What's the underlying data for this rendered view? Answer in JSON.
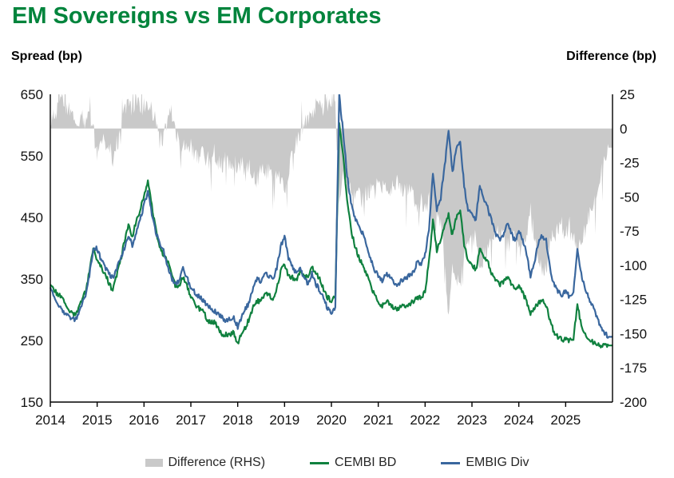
{
  "title": "EM Sovereigns vs EM Corporates",
  "axis_titles": {
    "left": "Spread (bp)",
    "right": "Difference (bp)"
  },
  "colors": {
    "title_green": "#00843c",
    "line_green": "#10813f",
    "line_blue": "#3a679e",
    "area_gray": "#c9c9c9",
    "axis_black": "#000000",
    "tick_text": "#111111"
  },
  "legend": {
    "items": [
      {
        "label": "Difference (RHS)",
        "swatch": "area",
        "color": "#c9c9c9"
      },
      {
        "label": "CEMBI BD",
        "swatch": "line",
        "color": "#10813f"
      },
      {
        "label": "EMBIG Div",
        "swatch": "line",
        "color": "#3a679e"
      }
    ]
  },
  "chart_data": {
    "type": "line",
    "title": "EM Sovereigns vs EM Corporates",
    "frequency": "monthly",
    "x_start": "2014-01",
    "x_end": "2025-12",
    "x_tick_labels": [
      "2014",
      "2015",
      "2016",
      "2017",
      "2018",
      "2019",
      "2020",
      "2021",
      "2022",
      "2023",
      "2024",
      "2025"
    ],
    "left_axis": {
      "label": "Spread (bp)",
      "min": 150,
      "max": 650,
      "tick_step": 100,
      "ticks": [
        650,
        550,
        450,
        350,
        250,
        150
      ]
    },
    "right_axis": {
      "label": "Difference (bp)",
      "min": -200,
      "max": 25,
      "tick_step": 25,
      "ticks": [
        25,
        0,
        -25,
        -50,
        -75,
        -100,
        -125,
        -150,
        -175,
        -200
      ]
    },
    "grid": false,
    "legend_position": "bottom",
    "series": [
      {
        "name": "EMBIG Div",
        "axis": "left",
        "type": "line",
        "color": "#3a679e",
        "values": [
          335,
          322,
          310,
          300,
          292,
          286,
          284,
          290,
          305,
          325,
          355,
          400,
          400,
          382,
          368,
          358,
          352,
          365,
          385,
          400,
          420,
          405,
          425,
          445,
          470,
          492,
          455,
          425,
          410,
          395,
          372,
          352,
          342,
          348,
          368,
          352,
          335,
          328,
          322,
          316,
          308,
          304,
          298,
          294,
          288,
          282,
          286,
          288,
          272,
          288,
          302,
          312,
          338,
          352,
          342,
          362,
          355,
          348,
          368,
          402,
          420,
          385,
          372,
          358,
          368,
          352,
          342,
          358,
          342,
          332,
          318,
          302,
          295,
          305,
          648,
          590,
          520,
          475,
          450,
          435,
          425,
          405,
          385,
          365,
          355,
          348,
          358,
          352,
          345,
          340,
          348,
          352,
          356,
          362,
          378,
          372,
          390,
          430,
          522,
          462,
          482,
          532,
          592,
          522,
          562,
          572,
          502,
          462,
          455,
          445,
          505,
          478,
          465,
          445,
          425,
          415,
          420,
          442,
          425,
          412,
          428,
          412,
          392,
          352,
          378,
          408,
          420,
          412,
          365,
          342,
          330,
          322,
          332,
          320,
          330,
          402,
          358,
          335,
          318,
          303,
          288,
          272,
          262,
          256
        ]
      },
      {
        "name": "CEMBI BD",
        "axis": "left",
        "type": "line",
        "color": "#10813f",
        "values": [
          339,
          331,
          325,
          320,
          309,
          299,
          293,
          296,
          314,
          329,
          362,
          398,
          383,
          369,
          360,
          344,
          331,
          355,
          380,
          412,
          436,
          419,
          444,
          460,
          487,
          508,
          468,
          431,
          401,
          387,
          379,
          363,
          338,
          339,
          353,
          340,
          321,
          311,
          302,
          300,
          286,
          279,
          280,
          270,
          260,
          260,
          260,
          264,
          244,
          264,
          272,
          286,
          305,
          314,
          314,
          328,
          325,
          312,
          336,
          362,
          374,
          355,
          352,
          348,
          364,
          356,
          351,
          371,
          358,
          351,
          332,
          320,
          315,
          321,
          600,
          554,
          478,
          431,
          404,
          386,
          373,
          358,
          341,
          325,
          313,
          307,
          314,
          309,
          304,
          300,
          305,
          307,
          309,
          314,
          321,
          319,
          332,
          378,
          444,
          397,
          412,
          437,
          454,
          420,
          450,
          460,
          406,
          378,
          373,
          365,
          399,
          385,
          379,
          361,
          347,
          341,
          344,
          354,
          344,
          334,
          339,
          327,
          315,
          292,
          302,
          311,
          314,
          308,
          281,
          264,
          255,
          251,
          253,
          249,
          253,
          309,
          274,
          261,
          254,
          248,
          245,
          241,
          241,
          242
        ]
      },
      {
        "name": "Difference (RHS)",
        "axis": "right",
        "type": "area",
        "color": "#c9c9c9",
        "baseline": 0,
        "derived_from": "CEMBI BD minus EMBIG Div"
      }
    ]
  }
}
